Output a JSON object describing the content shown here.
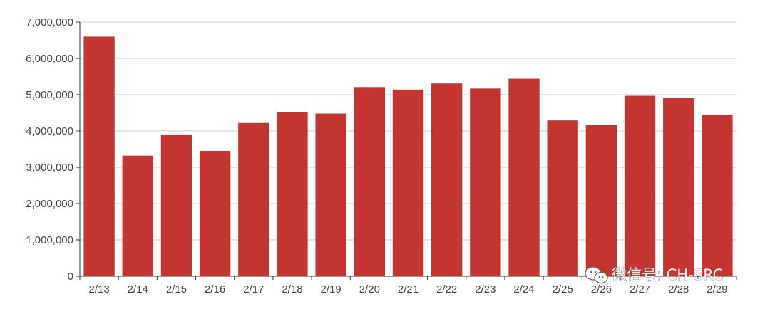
{
  "chart_data": {
    "type": "bar",
    "categories": [
      "2/13",
      "2/14",
      "2/15",
      "2/16",
      "2/17",
      "2/18",
      "2/19",
      "2/20",
      "2/21",
      "2/22",
      "2/23",
      "2/24",
      "2/25",
      "2/26",
      "2/27",
      "2/28",
      "2/29"
    ],
    "values": [
      6600000,
      3320000,
      3900000,
      3450000,
      4220000,
      4510000,
      4480000,
      5210000,
      5140000,
      5310000,
      5170000,
      5440000,
      4290000,
      4160000,
      4970000,
      4910000,
      4450000
    ],
    "yticks": [
      "0",
      "1,000,000",
      "2,000,000",
      "3,000,000",
      "4,000,000",
      "5,000,000",
      "6,000,000",
      "7,000,000"
    ],
    "ylim": [
      0,
      7000000
    ],
    "title": "",
    "xlabel": "",
    "ylabel": "",
    "grid": true,
    "bar_color": "#c23531",
    "grid_color": "#cccccc",
    "axis_color": "#333333"
  },
  "watermark": {
    "text": "微信号: CH-SRC",
    "icon": "wechat-icon"
  }
}
